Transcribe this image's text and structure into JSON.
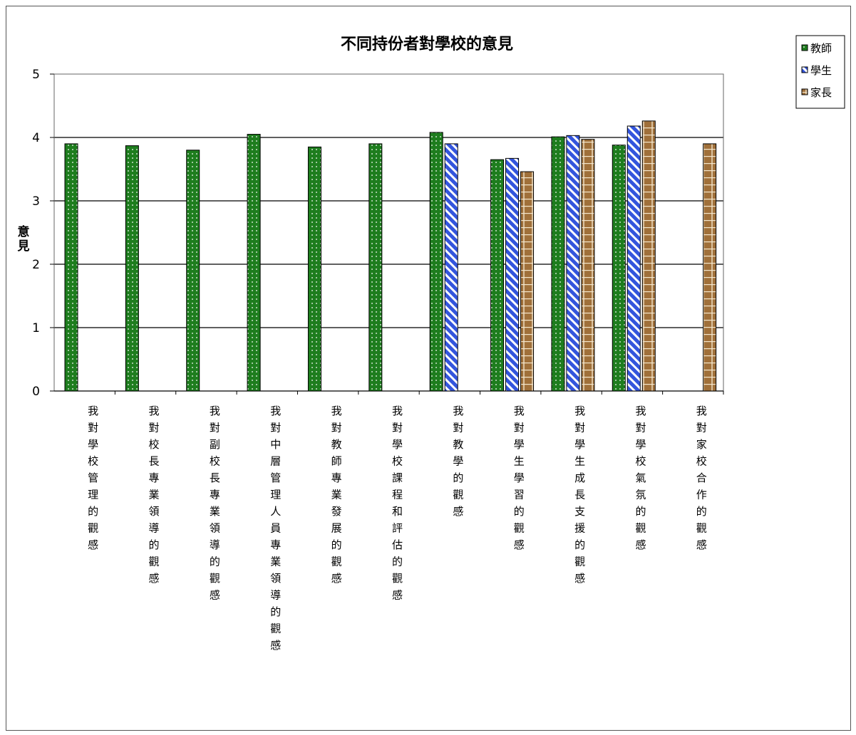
{
  "chart_data": {
    "type": "bar",
    "title": "不同持份者對學校的意見",
    "ylabel": "意見",
    "xlabel": "",
    "ylim": [
      0,
      5
    ],
    "yticks": [
      0,
      1,
      2,
      3,
      4,
      5
    ],
    "grid": true,
    "legend_position": "top-right",
    "categories": [
      "我對學校管理的觀感",
      "我對校長專業領導的觀感",
      "我對副校長專業領導的觀感",
      "我對中層管理人員專業領導的觀感",
      "我對教師專業發展的觀感",
      "我對學校課程和評估的觀感",
      "我對教學的觀感",
      "我對學生學習的觀感",
      "我對學生成長支援的觀感",
      "我對學校氣氛的觀感",
      "我對家校合作的觀感"
    ],
    "series": [
      {
        "name": "教師",
        "color": "#1e7d1e",
        "pattern": "dots",
        "values": [
          3.9,
          3.87,
          3.8,
          4.05,
          3.85,
          3.9,
          4.08,
          3.65,
          4.01,
          3.88,
          null
        ]
      },
      {
        "name": "學生",
        "color": "#3355dd",
        "pattern": "diagonal-stripes",
        "values": [
          null,
          null,
          null,
          null,
          null,
          null,
          3.9,
          3.67,
          4.03,
          4.18,
          null
        ]
      },
      {
        "name": "家長",
        "color": "#a0703a",
        "pattern": "brick",
        "values": [
          null,
          null,
          null,
          null,
          null,
          null,
          null,
          3.46,
          3.97,
          4.26,
          3.9
        ]
      }
    ]
  }
}
